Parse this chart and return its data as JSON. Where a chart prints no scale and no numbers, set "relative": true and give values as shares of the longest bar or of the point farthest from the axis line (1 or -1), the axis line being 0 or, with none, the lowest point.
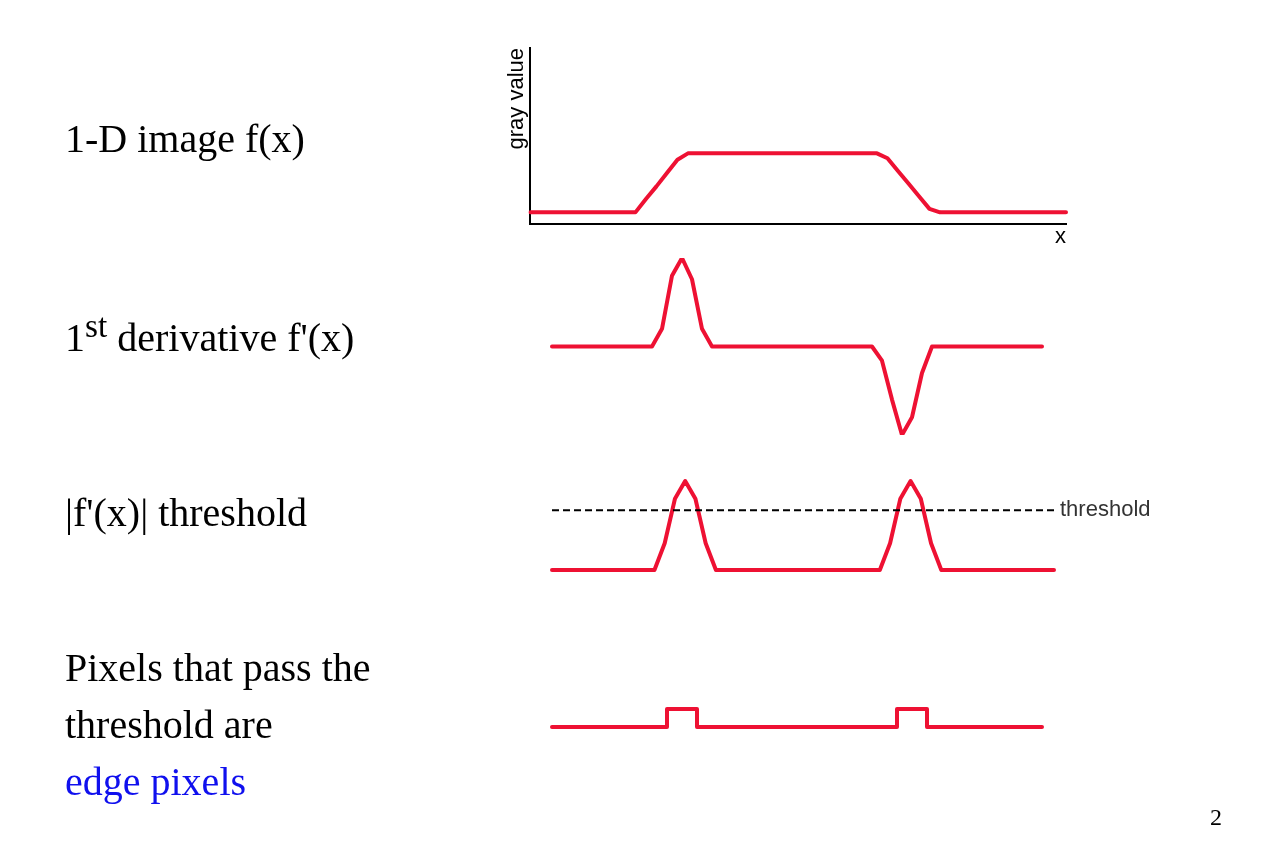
{
  "chart_data": [
    {
      "type": "line",
      "title": "1-D image f(x)",
      "xlabel": "x",
      "ylabel": "gray value",
      "relative": true,
      "categories": [
        null,
        null,
        null,
        null,
        null,
        null,
        null,
        null,
        null,
        null,
        null,
        null,
        null,
        null,
        null,
        null,
        null,
        null,
        null,
        null,
        null,
        null,
        null,
        null,
        null,
        null,
        null,
        null,
        null,
        null,
        null,
        null,
        null,
        null,
        null,
        null,
        null,
        null,
        null,
        null,
        null,
        null,
        null,
        null,
        null,
        null,
        null,
        null,
        null,
        null,
        null,
        null
      ],
      "series": [
        {
          "color": "#ee1133",
          "values": [
            0.16,
            0.16,
            0.16,
            0.16,
            0.16,
            0.16,
            0.16,
            0.16,
            0.16,
            0.16,
            0.16,
            0.35,
            0.53,
            0.72,
            0.91,
            1,
            1,
            1,
            1,
            1,
            1,
            1,
            1,
            1,
            1,
            1,
            1,
            1,
            1,
            1,
            1,
            1,
            1,
            1,
            0.93,
            0.75,
            0.57,
            0.39,
            0.21,
            0.16,
            0.16,
            0.16,
            0.16,
            0.16,
            0.16,
            0.16,
            0.16,
            0.16,
            0.16,
            0.16,
            0.16,
            0.16
          ]
        }
      ]
    },
    {
      "type": "line",
      "title": "1$^{st}$ derivative f'(x)",
      "relative": true,
      "categories": [
        null,
        null,
        null,
        null,
        null,
        null,
        null,
        null,
        null,
        null,
        null,
        null,
        null,
        null,
        null,
        null,
        null,
        null,
        null,
        null,
        null,
        null,
        null,
        null,
        null,
        null,
        null,
        null,
        null,
        null,
        null,
        null,
        null,
        null,
        null,
        null,
        null,
        null,
        null,
        null,
        null,
        null,
        null,
        null,
        null,
        null,
        null,
        null,
        null,
        null
      ],
      "series": [
        {
          "color": "#ee1133",
          "values": [
            0.5,
            0.5,
            0.5,
            0.5,
            0.5,
            0.5,
            0.5,
            0.5,
            0.5,
            0.5,
            0.5,
            0.6,
            0.9,
            1,
            0.88,
            0.6,
            0.5,
            0.5,
            0.5,
            0.5,
            0.5,
            0.5,
            0.5,
            0.5,
            0.5,
            0.5,
            0.5,
            0.5,
            0.5,
            0.5,
            0.5,
            0.5,
            0.5,
            0.42,
            0.2,
            0,
            0.1,
            0.35,
            0.5,
            0.5,
            0.5,
            0.5,
            0.5,
            0.5,
            0.5,
            0.5,
            0.5,
            0.5,
            0.5,
            0.5
          ]
        }
      ]
    },
    {
      "type": "line",
      "ylabel": "|f'(x)| threshold",
      "relative": true,
      "categories": [
        null,
        null,
        null,
        null,
        null,
        null,
        null,
        null,
        null,
        null,
        null,
        null,
        null,
        null,
        null,
        null,
        null,
        null,
        null,
        null,
        null,
        null,
        null,
        null,
        null,
        null,
        null,
        null,
        null,
        null,
        null,
        null,
        null,
        null,
        null,
        null,
        null,
        null,
        null,
        null,
        null,
        null,
        null,
        null,
        null,
        null,
        null,
        null,
        null,
        null
      ],
      "series": [
        {
          "color": "#ee1133",
          "values": [
            0,
            0,
            0,
            0,
            0,
            0,
            0,
            0,
            0,
            0,
            0,
            0.3,
            0.8,
            1,
            0.8,
            0.3,
            0,
            0,
            0,
            0,
            0,
            0,
            0,
            0,
            0,
            0,
            0,
            0,
            0,
            0,
            0,
            0,
            0,
            0.3,
            0.8,
            1,
            0.8,
            0.3,
            0,
            0,
            0,
            0,
            0,
            0,
            0,
            0,
            0,
            0,
            0,
            0
          ]
        }
      ],
      "ref_lines": [
        {
          "axis": "y",
          "value": 0.67,
          "label": "threshold",
          "color": "#000000",
          "line_style": "dashed"
        }
      ]
    },
    {
      "type": "step",
      "ylabel": "Pixels that pass the threshold are",
      "relative": true,
      "categories": [
        null,
        null,
        null,
        null,
        null,
        null,
        null,
        null,
        null,
        null,
        null,
        null,
        null,
        null,
        null,
        null,
        null,
        null,
        null,
        null,
        null,
        null,
        null,
        null,
        null,
        null,
        null,
        null,
        null,
        null,
        null,
        null,
        null,
        null,
        null,
        null,
        null,
        null,
        null,
        null,
        null,
        null,
        null,
        null,
        null,
        null,
        null,
        null,
        null,
        null
      ],
      "series": [
        {
          "color": "#ee1133",
          "values": [
            0,
            0,
            0,
            0,
            0,
            0,
            0,
            0,
            0,
            0,
            0,
            0,
            1,
            1,
            1,
            0,
            0,
            0,
            0,
            0,
            0,
            0,
            0,
            0,
            0,
            0,
            0,
            0,
            0,
            0,
            0,
            0,
            0,
            0,
            0,
            1,
            1,
            1,
            0,
            0,
            0,
            0,
            0,
            0,
            0,
            0,
            0,
            0,
            0,
            0
          ]
        }
      ],
      "annotations": [
        "edge pixels",
        "2"
      ]
    }
  ]
}
